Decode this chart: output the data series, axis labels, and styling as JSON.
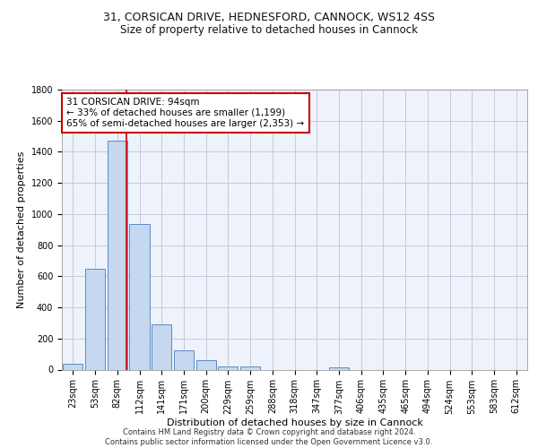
{
  "title_line1": "31, CORSICAN DRIVE, HEDNESFORD, CANNOCK, WS12 4SS",
  "title_line2": "Size of property relative to detached houses in Cannock",
  "xlabel": "Distribution of detached houses by size in Cannock",
  "ylabel": "Number of detached properties",
  "bin_labels": [
    "23sqm",
    "53sqm",
    "82sqm",
    "112sqm",
    "141sqm",
    "171sqm",
    "200sqm",
    "229sqm",
    "259sqm",
    "288sqm",
    "318sqm",
    "347sqm",
    "377sqm",
    "406sqm",
    "435sqm",
    "465sqm",
    "494sqm",
    "524sqm",
    "553sqm",
    "583sqm",
    "612sqm"
  ],
  "bar_heights": [
    40,
    650,
    1470,
    935,
    290,
    125,
    60,
    22,
    18,
    0,
    0,
    0,
    15,
    0,
    0,
    0,
    0,
    0,
    0,
    0,
    0
  ],
  "bar_color": "#c5d8f0",
  "bar_edge_color": "#5b8ac5",
  "reference_line_color": "#cc0000",
  "annotation_text": "31 CORSICAN DRIVE: 94sqm\n← 33% of detached houses are smaller (1,199)\n65% of semi-detached houses are larger (2,353) →",
  "annotation_box_color": "#cc0000",
  "ylim": [
    0,
    1800
  ],
  "yticks": [
    0,
    200,
    400,
    600,
    800,
    1000,
    1200,
    1400,
    1600,
    1800
  ],
  "footer_line1": "Contains HM Land Registry data © Crown copyright and database right 2024.",
  "footer_line2": "Contains public sector information licensed under the Open Government Licence v3.0.",
  "background_color": "#eef2fb",
  "grid_color": "#c8c8d8",
  "title1_fontsize": 9,
  "title2_fontsize": 8.5,
  "tick_fontsize": 7,
  "ylabel_fontsize": 8,
  "xlabel_fontsize": 8,
  "footer_fontsize": 6,
  "annotation_fontsize": 7.5
}
